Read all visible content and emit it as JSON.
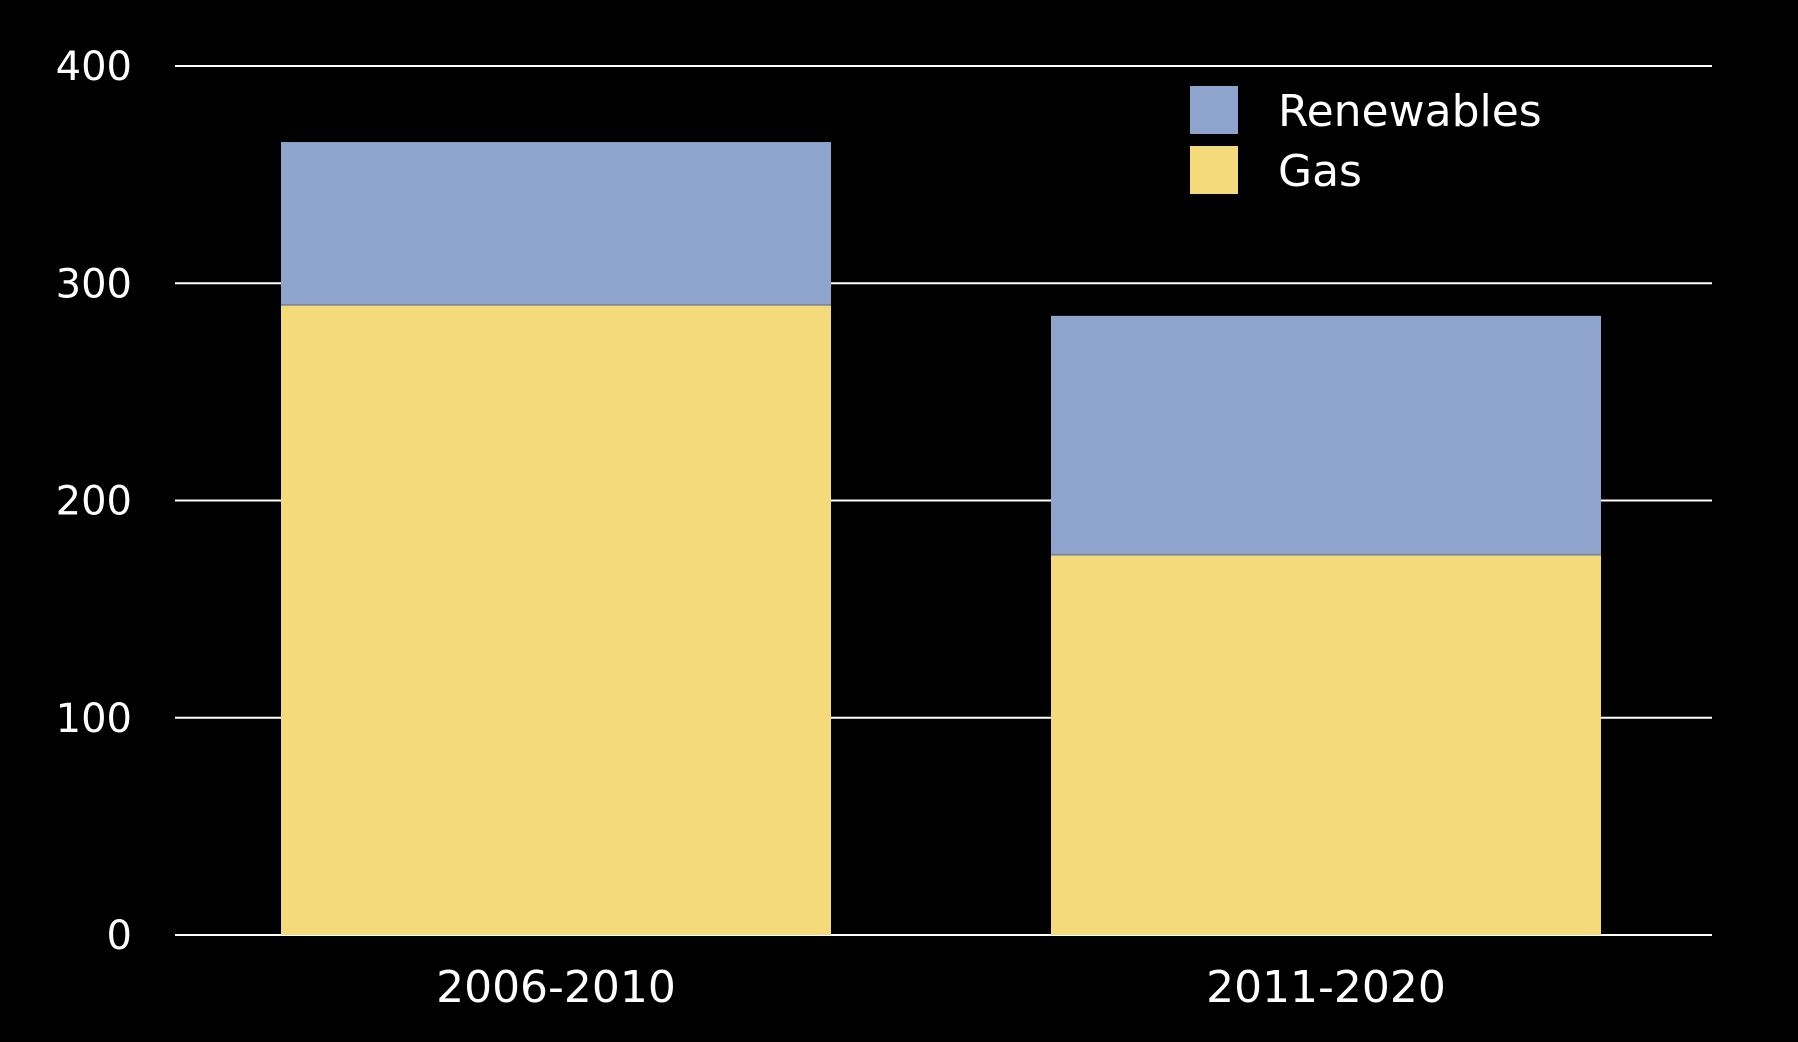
{
  "chart_data": {
    "type": "bar",
    "stacked": true,
    "categories": [
      "2006-2010",
      "2011-2020"
    ],
    "series": [
      {
        "name": "Gas",
        "values": [
          290,
          175
        ],
        "color": "#f4da7a"
      },
      {
        "name": "Renewables",
        "values": [
          75,
          110
        ],
        "color": "#8ea4cc"
      }
    ],
    "ylim": [
      0,
      400
    ],
    "yticks": [
      0,
      100,
      200,
      300,
      400
    ],
    "grid": true,
    "legend": "top-right",
    "background": "#000000",
    "text_color": "#ffffff"
  }
}
